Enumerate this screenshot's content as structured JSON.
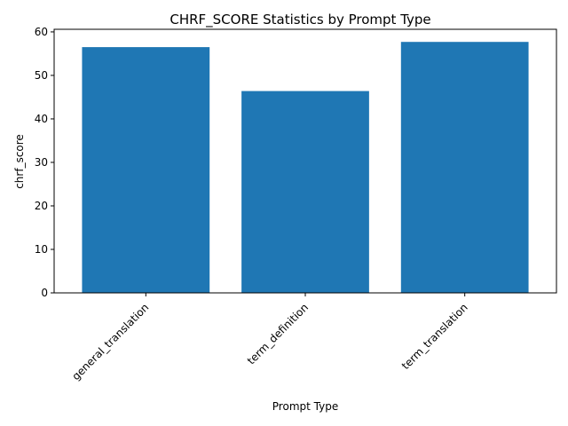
{
  "chart_data": {
    "type": "bar",
    "title": "CHRF_SCORE Statistics by Prompt Type",
    "xlabel": "Prompt Type",
    "ylabel": "chrf_score",
    "categories": [
      "general_translation",
      "term_definition",
      "term_translation"
    ],
    "values": [
      56.5,
      46.4,
      57.7
    ],
    "ylim": [
      0,
      60.6
    ],
    "yticks": [
      0,
      10,
      20,
      30,
      40,
      50,
      60
    ],
    "grid": false,
    "legend": "none",
    "bar_color": "#1f77b4"
  }
}
